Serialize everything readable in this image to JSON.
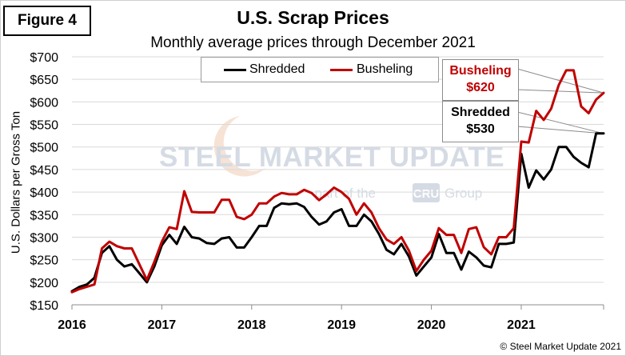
{
  "figure_label": "Figure 4",
  "copyright": "© Steel Market Update 2021",
  "watermark": {
    "main": "STEEL MARKET UPDATE",
    "sub_prefix": "part of the",
    "sub_brand": "CRU",
    "sub_suffix": "Group"
  },
  "callouts": {
    "busheling": {
      "name": "Busheling",
      "value": "$620"
    },
    "shredded": {
      "name": "Shredded",
      "value": "$530"
    }
  },
  "colors": {
    "shredded": "#000000",
    "busheling": "#c00000"
  },
  "chart_data": {
    "type": "line",
    "title": "U.S. Scrap Prices",
    "subtitle": "Monthly average prices through December 2021",
    "xlabel": "",
    "ylabel": "U.S. Dollars per Gross Ton",
    "x_ticks": [
      "2016",
      "2017",
      "2018",
      "2019",
      "2020",
      "2021"
    ],
    "y_ticks": [
      "$150",
      "$200",
      "$250",
      "$300",
      "$350",
      "$400",
      "$450",
      "$500",
      "$550",
      "$600",
      "$650",
      "$700"
    ],
    "ylim": [
      150,
      700
    ],
    "x_start": "2016-01",
    "x_end": "2021-12",
    "grid": "horizontal",
    "legend_position": "top-center",
    "series": [
      {
        "name": "Shredded",
        "values": [
          180,
          190,
          195,
          210,
          265,
          280,
          250,
          235,
          240,
          220,
          200,
          235,
          282,
          305,
          285,
          323,
          300,
          297,
          287,
          285,
          297,
          300,
          277,
          277,
          300,
          325,
          325,
          365,
          375,
          373,
          375,
          367,
          345,
          328,
          335,
          355,
          362,
          325,
          325,
          350,
          335,
          307,
          272,
          262,
          285,
          257,
          215,
          235,
          255,
          307,
          265,
          265,
          228,
          268,
          255,
          237,
          233,
          285,
          285,
          288,
          485,
          410,
          448,
          428,
          450,
          500,
          500,
          478,
          465,
          455,
          530,
          530
        ]
      },
      {
        "name": "Busheling",
        "values": [
          178,
          185,
          190,
          195,
          275,
          290,
          280,
          275,
          275,
          240,
          205,
          245,
          290,
          322,
          318,
          402,
          356,
          355,
          355,
          355,
          383,
          383,
          345,
          340,
          350,
          375,
          375,
          390,
          398,
          395,
          395,
          405,
          398,
          382,
          395,
          410,
          400,
          385,
          350,
          375,
          355,
          320,
          295,
          285,
          300,
          270,
          225,
          250,
          270,
          320,
          305,
          305,
          265,
          318,
          322,
          278,
          262,
          300,
          300,
          320,
          512,
          510,
          580,
          560,
          585,
          637,
          670,
          670,
          590,
          575,
          605,
          620
        ]
      }
    ]
  }
}
